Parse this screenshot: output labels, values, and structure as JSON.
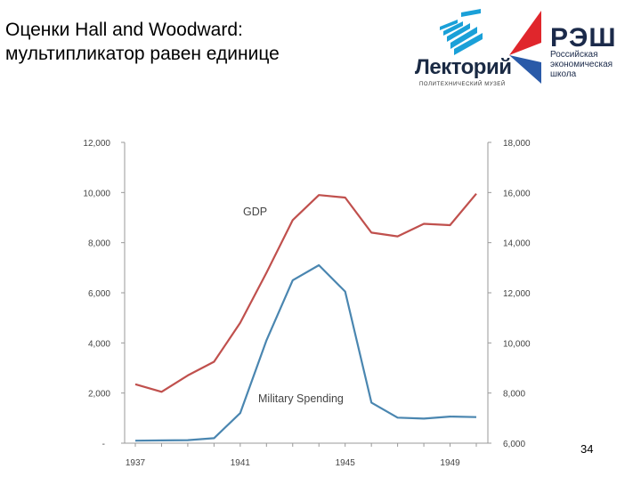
{
  "slide": {
    "title_line1": "Оценки Hall and Woodward:",
    "title_line2": "мультипликатор равен единице",
    "page_number": "34"
  },
  "logos": {
    "lektoriy": {
      "name": "Лекторий",
      "subtitle": "ПОЛИТЕХНИЧЕСКИЙ МУЗЕЙ",
      "color": "#1aa0d8"
    },
    "nes": {
      "name": "РЭШ",
      "subtitle_lines": [
        "Российская",
        "экономическая",
        "школа"
      ],
      "red": "#e0262c",
      "blue": "#2a5aa8"
    }
  },
  "chart_data": {
    "type": "line",
    "x": [
      1937,
      1938,
      1939,
      1940,
      1941,
      1942,
      1943,
      1944,
      1945,
      1946,
      1947,
      1948,
      1949,
      1950
    ],
    "x_tick_labels": [
      "1937",
      "1941",
      "1945",
      "1949"
    ],
    "series": [
      {
        "name": "GDP",
        "axis": "right",
        "color": "#c0504d",
        "values": [
          8350,
          8050,
          8700,
          9250,
          10800,
          12800,
          14900,
          15900,
          15800,
          14400,
          14250,
          14750,
          14700,
          15950
        ]
      },
      {
        "name": "Military Spending",
        "axis": "left",
        "color": "#4a86b0",
        "values": [
          100,
          110,
          120,
          200,
          1200,
          4100,
          6500,
          7100,
          6050,
          1620,
          1020,
          980,
          1060,
          1040
        ]
      }
    ],
    "y_left": {
      "range": [
        0,
        12000
      ],
      "tick_labels": [
        "-",
        "2,000",
        "4,000",
        "6,000",
        "8,000",
        "10,000",
        "12,000"
      ]
    },
    "y_right": {
      "range": [
        6000,
        18000
      ],
      "tick_labels": [
        "6,000",
        "8,000",
        "10,000",
        "12,000",
        "14,000",
        "16,000",
        "18,000"
      ]
    },
    "grid": false,
    "legend": "inline labels"
  }
}
